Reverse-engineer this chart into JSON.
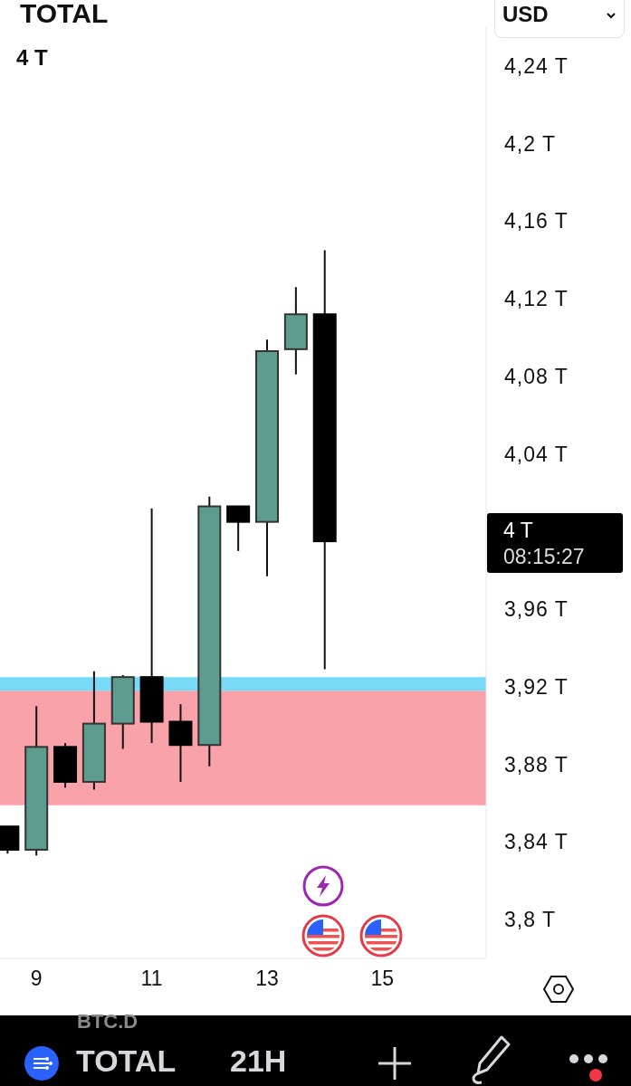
{
  "chart_data": {
    "type": "candlestick",
    "title": "TOTAL",
    "subtitle": "4 T",
    "x": [
      8.5,
      9,
      9.5,
      10,
      10.5,
      11,
      11.5,
      12,
      12.5,
      13,
      13.5,
      14
    ],
    "ohlc": [
      [
        3.848,
        3.848,
        3.834,
        3.836
      ],
      [
        3.836,
        3.91,
        3.833,
        3.889
      ],
      [
        3.889,
        3.891,
        3.868,
        3.871
      ],
      [
        3.871,
        3.928,
        3.867,
        3.901
      ],
      [
        3.901,
        3.926,
        3.888,
        3.925
      ],
      [
        3.925,
        4.012,
        3.891,
        3.902
      ],
      [
        3.902,
        3.911,
        3.871,
        3.89
      ],
      [
        3.89,
        4.018,
        3.879,
        4.013
      ],
      [
        4.013,
        4.013,
        3.99,
        4.005
      ],
      [
        4.005,
        4.099,
        3.977,
        4.093
      ],
      [
        4.094,
        4.126,
        4.081,
        4.112
      ],
      [
        4.112,
        4.145,
        3.929,
        3.995
      ]
    ],
    "colors": [
      "#000000",
      "#5f9c90",
      "#000000",
      "#5f9c90",
      "#5f9c90",
      "#000000",
      "#000000",
      "#5f9c90",
      "#000000",
      "#5f9c90",
      "#5f9c90",
      "#000000"
    ],
    "xlim": [
      8.37,
      16.8
    ],
    "xticks": [
      9,
      11,
      13,
      15
    ],
    "ylim": [
      3.78,
      4.26
    ],
    "yticks": [
      {
        "value": 4.24,
        "label": "4,24 T"
      },
      {
        "value": 4.2,
        "label": "4,2 T"
      },
      {
        "value": 4.16,
        "label": "4,16 T"
      },
      {
        "value": 4.12,
        "label": "4,12 T"
      },
      {
        "value": 4.08,
        "label": "4,08 T"
      },
      {
        "value": 4.04,
        "label": "4,04 T"
      },
      {
        "value": 3.96,
        "label": "3,96 T"
      },
      {
        "value": 3.92,
        "label": "3,92 T"
      },
      {
        "value": 3.88,
        "label": "3,88 T"
      },
      {
        "value": 3.84,
        "label": "3,84 T"
      },
      {
        "value": 3.8,
        "label": "3,8 T"
      }
    ],
    "bands": [
      {
        "axis": "y",
        "from": 3.859,
        "to": 3.918,
        "color": "#f9a2a9"
      },
      {
        "axis": "y",
        "from": 3.918,
        "to": 3.925,
        "color": "#78daf6"
      }
    ],
    "annotations": [
      "4 T",
      "08:15:27",
      "USD",
      "BTC.D",
      "TOTAL",
      "21H"
    ]
  }
}
